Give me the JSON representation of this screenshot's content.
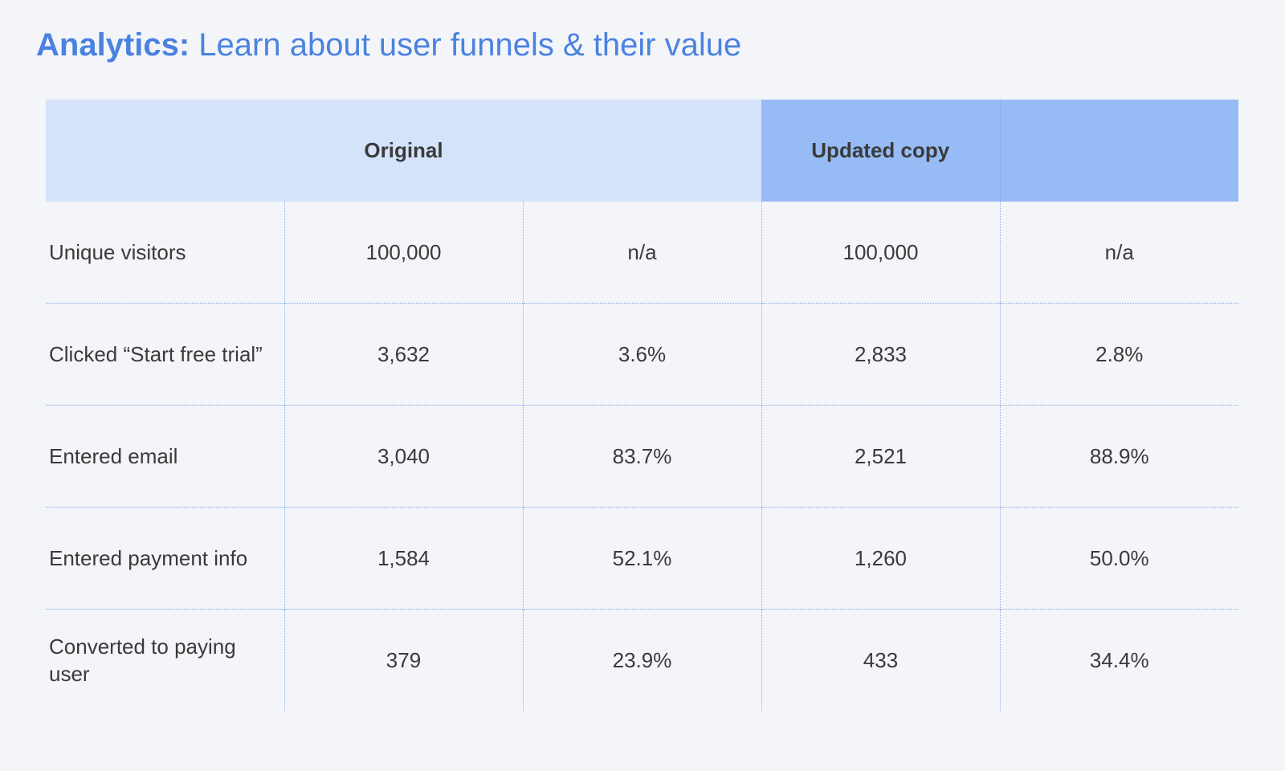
{
  "title": {
    "strong": "Analytics:",
    "rest": " Learn about user funnels & their value"
  },
  "table": {
    "groups": {
      "original": "Original",
      "updated": "Updated copy"
    },
    "rows": [
      {
        "label": "Unique visitors",
        "cells": [
          "100,000",
          "n/a",
          "100,000",
          "n/a"
        ]
      },
      {
        "label": "Clicked “Start free trial”",
        "cells": [
          "3,632",
          "3.6%",
          "2,833",
          "2.8%"
        ]
      },
      {
        "label": "Entered email",
        "cells": [
          "3,040",
          "83.7%",
          "2,521",
          "88.9%"
        ]
      },
      {
        "label": "Entered payment info",
        "cells": [
          "1,584",
          "52.1%",
          "1,260",
          "50.0%"
        ]
      },
      {
        "label": "Converted to paying user",
        "cells": [
          "379",
          "23.9%",
          "433",
          "34.4%"
        ]
      }
    ]
  },
  "colors": {
    "title": "#4a82e0",
    "header_original": "#d4e3f9",
    "header_updated": "#97bbf5",
    "background": "#f4f5f9"
  }
}
